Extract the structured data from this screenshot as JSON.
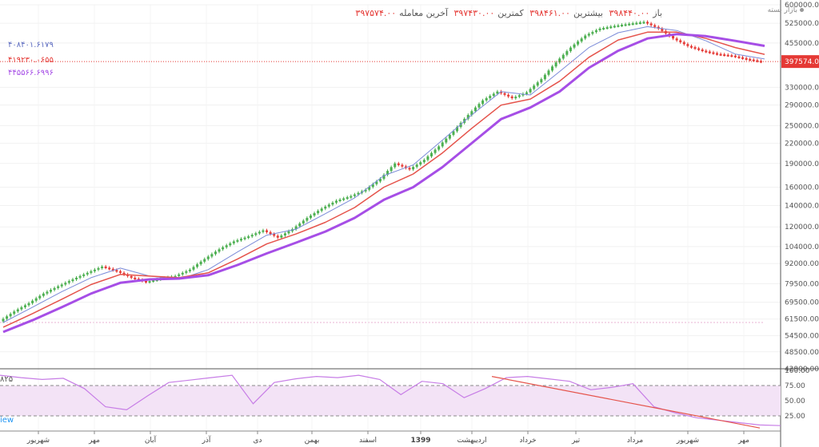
{
  "header": {
    "open_label": "باز",
    "open_value": "۳۹۸۴۴۰.۰۰",
    "high_label": "بیشترین",
    "high_value": "۳۹۸۴۶۱.۰۰",
    "low_label": "کمترین",
    "low_value": "۳۹۷۴۳۰.۰۰",
    "last_label": "آخرین معامله",
    "last_value": "۳۹۷۵۷۴.۰۰",
    "status": "بازار بسته"
  },
  "indicators": {
    "ma1": "۴۰۸۴۰۱.۶۱۷۹",
    "ma2": "۴۱۹۲۳۰.۰۶۵۵",
    "ma3": "۴۴۵۵۶۶.۶۹۹۶",
    "rsi_label": "۸۲۵",
    "view_label": "iew"
  },
  "colors": {
    "fast_ma": "#7b8bd8",
    "mid_ma": "#e5534b",
    "slow_ma": "#a64ee6",
    "rsi_line": "#c77de6",
    "rsi_band": "#f3e3f6",
    "price_tag": "#e53935",
    "up_candle": "#4caf50",
    "down_candle": "#e53935"
  },
  "chart_data": {
    "type": "line",
    "price_scale": "log",
    "y_ticks": [
      "600000.00",
      "525000.00",
      "455000.00",
      "397574.00",
      "330000.00",
      "290000.00",
      "250000.00",
      "220000.00",
      "190000.00",
      "160000.00",
      "140000.00",
      "120000.00",
      "104000.00",
      "92000.00",
      "79500.00",
      "69500.00",
      "61500.00",
      "54500.00",
      "48500.00",
      "42900.00"
    ],
    "last_price_label": "397574.00",
    "x_ticks": [
      "شهریور",
      "مهر",
      "آبان",
      "آذر",
      "دی",
      "بهمن",
      "اسفند",
      "1399",
      "اردیبهشت",
      "خرداد",
      "تیر",
      "مرداد",
      "شهریور",
      "مهر"
    ],
    "rsi_ticks": [
      "100.00",
      "75.00",
      "50.00",
      "25.00"
    ],
    "series": [
      {
        "name": "۴۰۸۴۰۱.۶۱۷۹",
        "values": [
          60000,
          67000,
          75000,
          83000,
          89000,
          84000,
          82000,
          88000,
          100000,
          113000,
          118000,
          132000,
          148000,
          174000,
          188000,
          225000,
          270000,
          320000,
          312000,
          370000,
          440000,
          490000,
          512000,
          498000,
          462000,
          420000,
          405000
        ]
      },
      {
        "name": "۴۱۹۲۳۰.۰۶۵۵",
        "values": [
          58000,
          64000,
          71000,
          79000,
          85000,
          84000,
          83000,
          86000,
          95000,
          106000,
          114000,
          124000,
          138000,
          160000,
          176000,
          205000,
          245000,
          290000,
          303000,
          345000,
          410000,
          465000,
          492000,
          492000,
          470000,
          440000,
          419000
        ]
      },
      {
        "name": "۴۴۵۵۶۶.۶۹۹۶",
        "values": [
          56000,
          61000,
          67000,
          74000,
          80000,
          82000,
          82500,
          84500,
          91000,
          99000,
          107000,
          116000,
          128000,
          146000,
          160000,
          185000,
          220000,
          262000,
          285000,
          320000,
          380000,
          430000,
          470000,
          485000,
          478000,
          462000,
          445500
        ]
      }
    ],
    "candles_close": [
      60500,
      65000,
      69000,
      74000,
      78000,
      82000,
      86000,
      90000,
      87000,
      83000,
      80500,
      82500,
      84000,
      88000,
      95000,
      102000,
      108000,
      112000,
      117000,
      111000,
      118000,
      128000,
      137000,
      145000,
      150000,
      157000,
      170000,
      190000,
      182000,
      195000,
      215000,
      240000,
      270000,
      300000,
      320000,
      305000,
      318000,
      350000,
      395000,
      440000,
      480000,
      505000,
      515000,
      523000,
      530000,
      505000,
      470000,
      445000,
      430000,
      420000,
      415000,
      405000,
      397574
    ],
    "rsi": [
      92,
      88,
      85,
      87,
      70,
      40,
      35,
      58,
      80,
      84,
      88,
      92,
      45,
      80,
      86,
      90,
      88,
      92,
      85,
      60,
      82,
      78,
      55,
      70,
      88,
      90,
      86,
      82,
      68,
      72,
      78,
      40,
      30,
      22,
      18,
      14,
      10,
      9
    ],
    "rsi_trend": {
      "from": 90,
      "to": 5
    }
  }
}
